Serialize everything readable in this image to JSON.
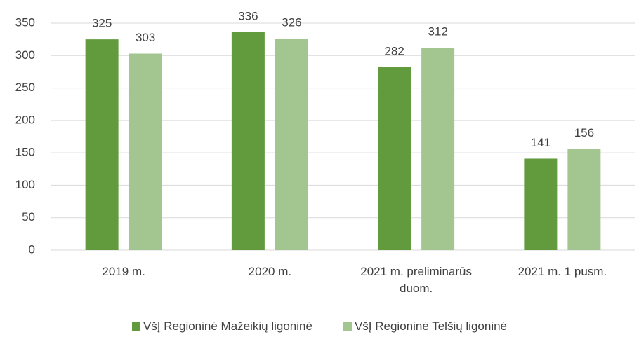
{
  "chart_data": {
    "type": "bar",
    "categories": [
      "2019 m.",
      "2020 m.",
      "2021 m. preliminarūs duom.",
      "2021 m. 1 pusm."
    ],
    "series": [
      {
        "name": "VšĮ Regioninė Mažeikių ligoninė",
        "color": "#629b3e",
        "values": [
          325,
          336,
          282,
          141
        ]
      },
      {
        "name": "VšĮ Regioninė Telšių ligoninė",
        "color": "#a3c58f",
        "values": [
          303,
          326,
          312,
          156
        ]
      }
    ],
    "ylim": [
      0,
      350
    ],
    "yticks": [
      0,
      50,
      100,
      150,
      200,
      250,
      300,
      350
    ],
    "grid": true,
    "legend": "bottom"
  }
}
